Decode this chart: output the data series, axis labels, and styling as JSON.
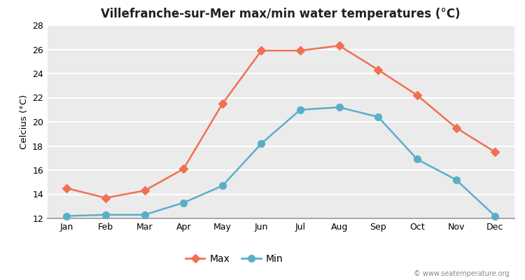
{
  "months": [
    "Jan",
    "Feb",
    "Mar",
    "Apr",
    "May",
    "Jun",
    "Jul",
    "Aug",
    "Sep",
    "Oct",
    "Nov",
    "Dec"
  ],
  "max_temps": [
    14.5,
    13.7,
    14.3,
    16.1,
    21.5,
    25.9,
    25.9,
    26.3,
    24.3,
    22.2,
    19.5,
    17.5
  ],
  "min_temps": [
    12.2,
    12.3,
    12.3,
    13.3,
    14.7,
    18.2,
    21.0,
    21.2,
    20.4,
    16.9,
    15.2,
    12.2
  ],
  "max_color": "#f07050",
  "min_color": "#5aafc8",
  "title": "Villefranche-sur-Mer max/min water temperatures (°C)",
  "ylabel": "Celcius (°C)",
  "ylim": [
    12,
    28
  ],
  "yticks": [
    12,
    14,
    16,
    18,
    20,
    22,
    24,
    26,
    28
  ],
  "bg_color": "#ffffff",
  "plot_bg_color": "#ebebeb",
  "grid_color": "#ffffff",
  "watermark": "© www.seatemperature.org",
  "max_marker": "D",
  "min_marker": "o",
  "markersize": 6,
  "linewidth": 1.8,
  "legend_labels": [
    "Max",
    "Min"
  ]
}
